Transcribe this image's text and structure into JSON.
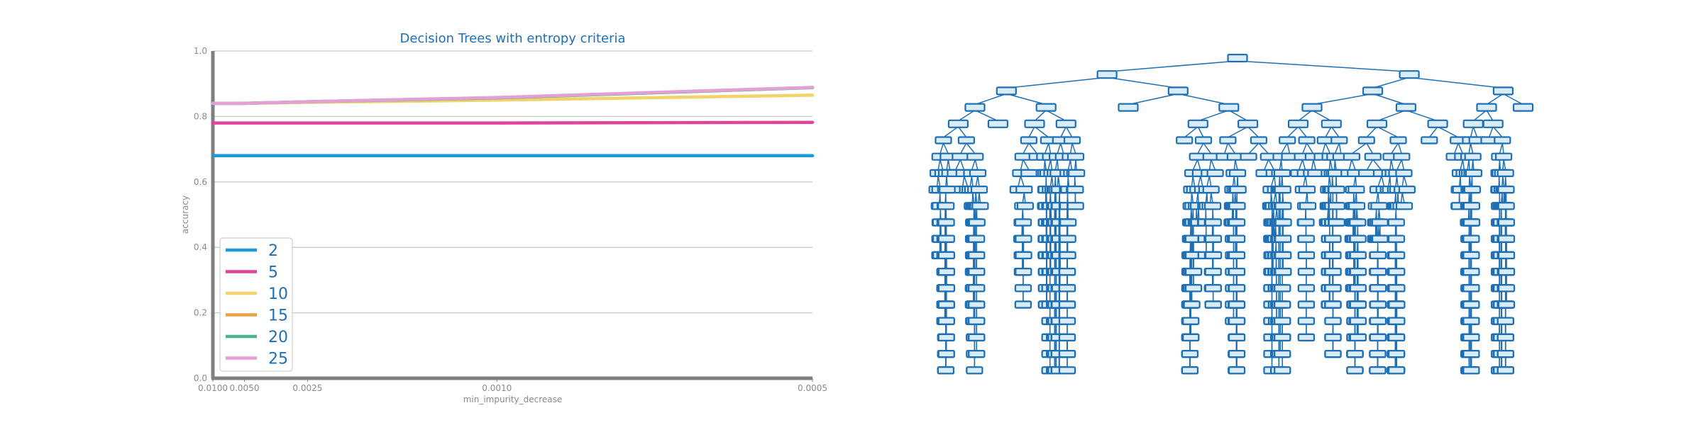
{
  "chart_data": [
    {
      "type": "line",
      "title": "Decision Trees with entropy criteria",
      "xlabel": "min_impurity_decrease",
      "ylabel": "accuracy",
      "x_ticks": [
        "0.0100",
        "0.0050",
        "0.0025",
        "0.0010",
        "0.0005"
      ],
      "x": [
        0.01,
        0.0075,
        0.005,
        0.0025,
        0.001,
        0.0005
      ],
      "x_scale": "reciprocal",
      "ylim": [
        0.0,
        1.0
      ],
      "y_ticks": [
        "0.0",
        "0.2",
        "0.4",
        "0.6",
        "0.8",
        "1.0"
      ],
      "grid": "horizontal",
      "legend": "lower-left",
      "series": [
        {
          "name": "2",
          "color": "#1a9bd7",
          "values": [
            0.68,
            0.68,
            0.68,
            0.68,
            0.68,
            0.68
          ]
        },
        {
          "name": "5",
          "color": "#e0449a",
          "values": [
            0.78,
            0.78,
            0.78,
            0.78,
            0.78,
            0.782
          ]
        },
        {
          "name": "10",
          "color": "#f2d36b",
          "values": [
            0.84,
            0.84,
            0.84,
            0.843,
            0.85,
            0.865
          ]
        },
        {
          "name": "15",
          "color": "#e8a33d",
          "values": [
            0.84,
            0.84,
            0.84,
            0.845,
            0.857,
            0.888
          ]
        },
        {
          "name": "20",
          "color": "#4cb391",
          "values": [
            0.84,
            0.84,
            0.84,
            0.845,
            0.857,
            0.888
          ]
        },
        {
          "name": "25",
          "color": "#e3a0d6",
          "values": [
            0.84,
            0.84,
            0.84,
            0.845,
            0.858,
            0.889
          ]
        }
      ]
    },
    {
      "type": "tree",
      "node_count": 470
    }
  ]
}
